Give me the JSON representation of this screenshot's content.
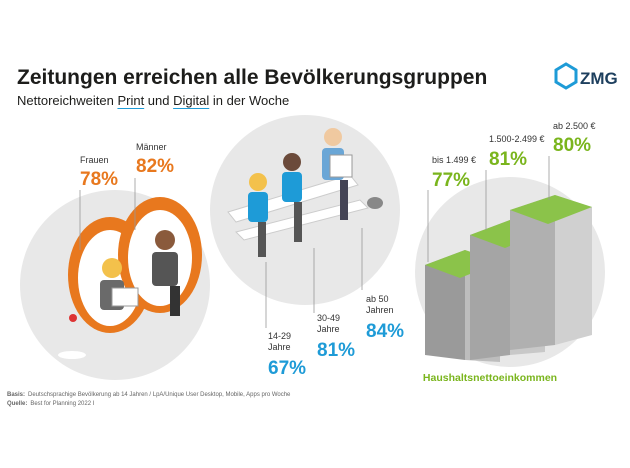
{
  "header": {
    "title": "Zeitungen erreichen alle Bevölkerungsgruppen",
    "subtitle": [
      "Nettoreichweiten ",
      "Print",
      " und ",
      "Digital",
      " in der Woche"
    ]
  },
  "logo": "ZMG",
  "gender": [
    {
      "label": "Frauen",
      "value": "78%"
    },
    {
      "label": "Männer",
      "value": "82%"
    }
  ],
  "age": [
    {
      "label": [
        "14-29",
        "Jahre"
      ],
      "value": "67%"
    },
    {
      "label": [
        "30-49",
        "Jahre"
      ],
      "value": "81%"
    },
    {
      "label": [
        "ab 50",
        "Jahren"
      ],
      "value": "84%"
    }
  ],
  "income": [
    {
      "label": "bis 1.499 €",
      "value": "77%"
    },
    {
      "label": "1.500-2.499 €",
      "value": "81%"
    },
    {
      "label": "ab 2.500 €",
      "value": "80%"
    }
  ],
  "income_caption": "Haushaltsnettoeinkommen",
  "footer": {
    "basis_label": "Basis:",
    "basis": "Deutschsprachige Bevölkerung ab 14 Jahren / LpA/Unique User Desktop, Mobile, Apps pro Woche",
    "quelle_label": "Quelle:",
    "quelle": "Best for Planning 2022 I"
  }
}
